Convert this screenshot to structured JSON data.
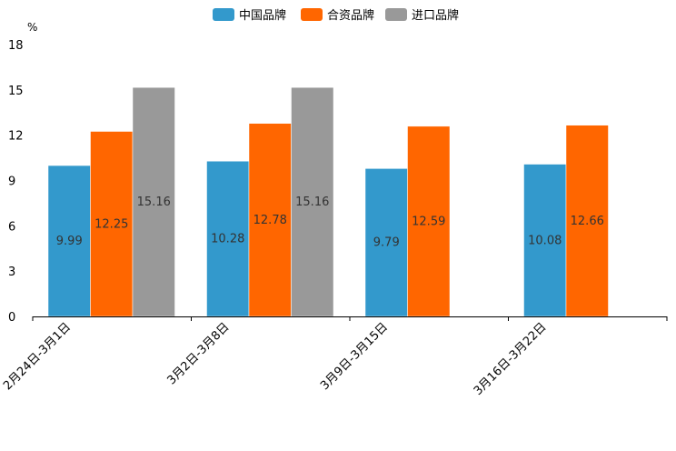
{
  "chart_data": {
    "type": "bar",
    "title": "",
    "ylabel": "%",
    "xlabel": "",
    "ylim": [
      0,
      18
    ],
    "yticks": [
      0,
      3,
      6,
      9,
      12,
      15,
      18
    ],
    "grid": false,
    "legend_position": "top-center",
    "categories": [
      "2月24日-3月1日",
      "3月2日-3月8日",
      "3月9日-3月15日",
      "3月16日-3月22日"
    ],
    "series": [
      {
        "name": "中国品牌",
        "color": "#3399CC",
        "values": [
          9.99,
          10.28,
          9.79,
          10.08
        ]
      },
      {
        "name": "合资品牌",
        "color": "#FF6600",
        "values": [
          12.25,
          12.78,
          12.59,
          12.66
        ]
      },
      {
        "name": "进口品牌",
        "color": "#999999",
        "values": [
          15.16,
          15.16,
          null,
          null
        ]
      }
    ]
  }
}
